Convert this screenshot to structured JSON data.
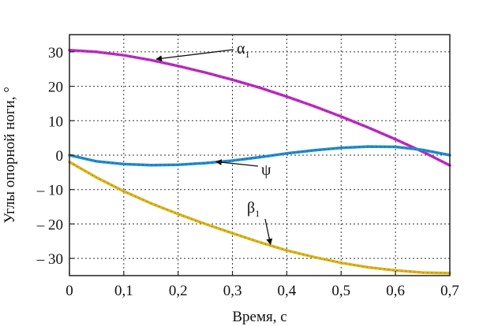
{
  "chart_data": {
    "type": "line",
    "title": "",
    "xlabel": "Время, с",
    "ylabel": "Углы опорной ноги, °",
    "xlim": [
      0,
      0.7
    ],
    "ylim": [
      -35,
      35
    ],
    "grid": true,
    "x_ticks": [
      "0",
      "0,1",
      "0,2",
      "0,3",
      "0,4",
      "0,5",
      "0,6",
      "0,7"
    ],
    "y_ticks": [
      "30",
      "20",
      "10",
      "0",
      "– 10",
      "– 20",
      "– 30"
    ],
    "series": [
      {
        "name": "α",
        "subscript": "1",
        "color": "#c02ac8",
        "marker_color": "#3a3a3a",
        "x": [
          0,
          0.05,
          0.1,
          0.15,
          0.2,
          0.25,
          0.3,
          0.35,
          0.4,
          0.45,
          0.5,
          0.55,
          0.6,
          0.65,
          0.7
        ],
        "y": [
          30.5,
          30,
          29,
          27.6,
          25.9,
          24,
          21.9,
          19.6,
          17,
          14.2,
          11.2,
          8,
          4.6,
          1,
          -3
        ]
      },
      {
        "name": "ψ",
        "subscript": "",
        "color": "#1f8fd0",
        "marker_color": "#3a3a3a",
        "x": [
          0,
          0.05,
          0.1,
          0.15,
          0.2,
          0.25,
          0.3,
          0.35,
          0.4,
          0.45,
          0.5,
          0.55,
          0.6,
          0.65,
          0.7
        ],
        "y": [
          0,
          -1.8,
          -2.6,
          -2.9,
          -2.8,
          -2.3,
          -1.6,
          -0.6,
          0.5,
          1.4,
          2.1,
          2.5,
          2.4,
          1.5,
          0
        ]
      },
      {
        "name": "β",
        "subscript": "1",
        "color": "#d8b81c",
        "marker_color": "#c0301c",
        "x": [
          0,
          0.05,
          0.1,
          0.15,
          0.2,
          0.25,
          0.3,
          0.35,
          0.4,
          0.45,
          0.5,
          0.55,
          0.6,
          0.65,
          0.7
        ],
        "y": [
          -2,
          -6.5,
          -10.5,
          -14,
          -17.1,
          -20,
          -22.7,
          -25.3,
          -27.7,
          -29.6,
          -31.3,
          -32.6,
          -33.5,
          -34.1,
          -34.3
        ]
      }
    ]
  }
}
